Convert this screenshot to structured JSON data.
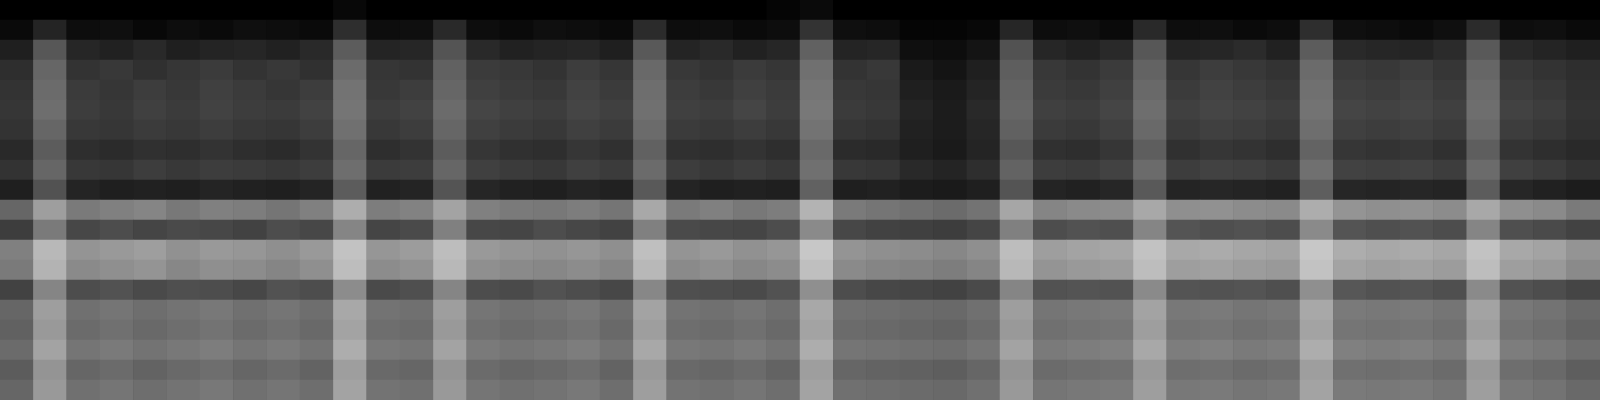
{
  "chart_data": {
    "type": "heatmap",
    "tick_labels": false,
    "grid": false,
    "zlim": [
      0,
      100
    ],
    "cells": [
      [
        0,
        0,
        0,
        0,
        0,
        0,
        0,
        0,
        0,
        0,
        3,
        0,
        0,
        0,
        0,
        0,
        0,
        0,
        0,
        0,
        0,
        0,
        0,
        2,
        4,
        0,
        0,
        0,
        0,
        0,
        0,
        0,
        0,
        0,
        0,
        0,
        0,
        0,
        0,
        0,
        0,
        0,
        0,
        0,
        0,
        0,
        0,
        0
      ],
      [
        4,
        14,
        5,
        6,
        3,
        5,
        4,
        6,
        5,
        4,
        18,
        5,
        6,
        16,
        5,
        4,
        6,
        5,
        4,
        17,
        5,
        6,
        4,
        5,
        20,
        6,
        5,
        2,
        2,
        3,
        15,
        5,
        6,
        4,
        16,
        5,
        6,
        4,
        5,
        18,
        6,
        5,
        4,
        6,
        17,
        5,
        6,
        4
      ],
      [
        12,
        34,
        15,
        13,
        16,
        12,
        14,
        15,
        13,
        16,
        36,
        14,
        15,
        33,
        16,
        13,
        14,
        15,
        12,
        35,
        14,
        16,
        13,
        15,
        38,
        14,
        15,
        6,
        5,
        8,
        32,
        15,
        13,
        16,
        34,
        14,
        15,
        17,
        13,
        36,
        16,
        15,
        14,
        17,
        35,
        16,
        14,
        12
      ],
      [
        18,
        40,
        20,
        22,
        19,
        21,
        23,
        20,
        22,
        19,
        42,
        21,
        20,
        38,
        23,
        22,
        20,
        24,
        21,
        41,
        22,
        20,
        23,
        21,
        44,
        20,
        22,
        10,
        8,
        12,
        37,
        22,
        20,
        23,
        39,
        21,
        24,
        22,
        20,
        42,
        23,
        22,
        24,
        21,
        40,
        22,
        20,
        18
      ],
      [
        20,
        42,
        23,
        21,
        24,
        22,
        25,
        23,
        21,
        24,
        45,
        22,
        24,
        40,
        25,
        23,
        22,
        26,
        23,
        43,
        24,
        22,
        25,
        23,
        46,
        22,
        21,
        12,
        10,
        14,
        39,
        23,
        22,
        25,
        41,
        23,
        26,
        24,
        22,
        44,
        25,
        24,
        26,
        23,
        42,
        24,
        22,
        19
      ],
      [
        21,
        43,
        24,
        22,
        25,
        23,
        26,
        24,
        23,
        26,
        46,
        24,
        26,
        42,
        27,
        25,
        24,
        27,
        25,
        44,
        25,
        24,
        27,
        24,
        47,
        23,
        22,
        14,
        11,
        16,
        40,
        25,
        24,
        27,
        43,
        25,
        27,
        26,
        24,
        45,
        27,
        26,
        27,
        25,
        43,
        26,
        24,
        20
      ],
      [
        20,
        40,
        22,
        21,
        23,
        22,
        24,
        22,
        21,
        24,
        44,
        22,
        24,
        40,
        25,
        23,
        22,
        25,
        23,
        42,
        23,
        22,
        24,
        22,
        45,
        21,
        20,
        13,
        11,
        15,
        38,
        23,
        22,
        25,
        41,
        23,
        25,
        24,
        22,
        43,
        25,
        24,
        25,
        23,
        41,
        24,
        22,
        19
      ],
      [
        16,
        36,
        18,
        17,
        19,
        18,
        20,
        18,
        17,
        20,
        40,
        18,
        20,
        36,
        21,
        19,
        18,
        21,
        19,
        38,
        19,
        18,
        20,
        18,
        41,
        17,
        16,
        12,
        10,
        14,
        34,
        19,
        18,
        21,
        37,
        19,
        21,
        20,
        18,
        39,
        21,
        20,
        21,
        19,
        37,
        20,
        18,
        16
      ],
      [
        20,
        40,
        22,
        21,
        24,
        22,
        24,
        23,
        22,
        24,
        43,
        23,
        24,
        40,
        25,
        23,
        22,
        25,
        23,
        42,
        24,
        22,
        24,
        22,
        44,
        22,
        21,
        16,
        14,
        18,
        39,
        24,
        23,
        26,
        42,
        24,
        26,
        25,
        23,
        44,
        26,
        25,
        26,
        24,
        42,
        25,
        23,
        20
      ],
      [
        12,
        32,
        14,
        12,
        13,
        12,
        14,
        13,
        12,
        14,
        36,
        13,
        14,
        33,
        15,
        13,
        12,
        14,
        13,
        35,
        14,
        12,
        13,
        12,
        38,
        12,
        13,
        11,
        10,
        12,
        33,
        14,
        13,
        15,
        35,
        14,
        15,
        14,
        13,
        37,
        15,
        14,
        15,
        14,
        36,
        15,
        13,
        11
      ],
      [
        40,
        62,
        48,
        50,
        52,
        47,
        50,
        49,
        46,
        50,
        68,
        49,
        51,
        64,
        50,
        48,
        47,
        49,
        46,
        66,
        48,
        50,
        47,
        49,
        70,
        48,
        46,
        44,
        42,
        45,
        65,
        52,
        54,
        55,
        66,
        56,
        57,
        55,
        54,
        68,
        58,
        56,
        57,
        55,
        66,
        56,
        54,
        48
      ],
      [
        24,
        48,
        28,
        30,
        27,
        29,
        28,
        26,
        30,
        28,
        52,
        27,
        29,
        50,
        28,
        27,
        30,
        28,
        26,
        50,
        29,
        28,
        27,
        30,
        54,
        28,
        26,
        25,
        24,
        27,
        50,
        30,
        32,
        31,
        52,
        33,
        31,
        32,
        30,
        54,
        33,
        31,
        32,
        30,
        52,
        31,
        29,
        26
      ],
      [
        50,
        72,
        58,
        60,
        62,
        57,
        60,
        59,
        56,
        60,
        76,
        59,
        61,
        74,
        60,
        58,
        57,
        59,
        56,
        75,
        58,
        60,
        57,
        59,
        78,
        58,
        56,
        55,
        53,
        56,
        74,
        62,
        64,
        65,
        76,
        66,
        67,
        65,
        64,
        78,
        68,
        66,
        67,
        65,
        76,
        66,
        64,
        58
      ],
      [
        48,
        70,
        54,
        56,
        58,
        53,
        56,
        55,
        52,
        56,
        74,
        55,
        57,
        72,
        56,
        54,
        53,
        55,
        52,
        72,
        54,
        56,
        53,
        55,
        75,
        54,
        52,
        51,
        49,
        52,
        72,
        58,
        60,
        61,
        74,
        62,
        63,
        61,
        60,
        76,
        64,
        62,
        63,
        61,
        74,
        62,
        60,
        54
      ],
      [
        26,
        52,
        30,
        32,
        29,
        31,
        30,
        28,
        32,
        30,
        55,
        29,
        31,
        52,
        30,
        29,
        32,
        30,
        28,
        53,
        31,
        30,
        29,
        32,
        56,
        30,
        28,
        27,
        26,
        29,
        52,
        32,
        33,
        32,
        54,
        33,
        32,
        33,
        31,
        56,
        34,
        32,
        33,
        31,
        54,
        32,
        30,
        27
      ],
      [
        40,
        62,
        44,
        46,
        43,
        45,
        47,
        44,
        46,
        43,
        66,
        45,
        44,
        62,
        46,
        44,
        45,
        47,
        43,
        64,
        45,
        44,
        46,
        43,
        66,
        44,
        43,
        42,
        41,
        44,
        62,
        46,
        47,
        48,
        64,
        47,
        48,
        46,
        47,
        66,
        48,
        47,
        48,
        46,
        64,
        47,
        45,
        41
      ],
      [
        38,
        60,
        42,
        44,
        41,
        43,
        45,
        42,
        44,
        41,
        64,
        43,
        42,
        60,
        44,
        42,
        43,
        45,
        41,
        62,
        43,
        42,
        44,
        41,
        64,
        42,
        41,
        40,
        39,
        42,
        60,
        44,
        45,
        46,
        62,
        45,
        46,
        44,
        45,
        64,
        46,
        45,
        46,
        44,
        62,
        45,
        43,
        39
      ],
      [
        42,
        64,
        46,
        48,
        45,
        47,
        49,
        46,
        48,
        45,
        68,
        47,
        46,
        64,
        48,
        46,
        47,
        49,
        45,
        66,
        47,
        46,
        48,
        45,
        68,
        46,
        45,
        44,
        43,
        46,
        64,
        48,
        49,
        50,
        66,
        49,
        50,
        48,
        49,
        68,
        50,
        49,
        50,
        48,
        66,
        49,
        47,
        43
      ],
      [
        36,
        58,
        40,
        42,
        39,
        41,
        43,
        40,
        42,
        39,
        62,
        41,
        40,
        58,
        42,
        40,
        41,
        43,
        39,
        60,
        41,
        40,
        42,
        39,
        62,
        40,
        39,
        38,
        37,
        40,
        58,
        42,
        43,
        44,
        60,
        43,
        44,
        42,
        43,
        62,
        44,
        43,
        44,
        42,
        60,
        43,
        41,
        37
      ],
      [
        40,
        60,
        44,
        46,
        43,
        45,
        47,
        44,
        46,
        43,
        64,
        45,
        44,
        60,
        46,
        44,
        45,
        47,
        43,
        62,
        45,
        44,
        46,
        43,
        64,
        44,
        43,
        42,
        41,
        44,
        60,
        46,
        47,
        48,
        62,
        47,
        48,
        46,
        47,
        64,
        48,
        47,
        48,
        46,
        62,
        47,
        45,
        41
      ]
    ]
  }
}
